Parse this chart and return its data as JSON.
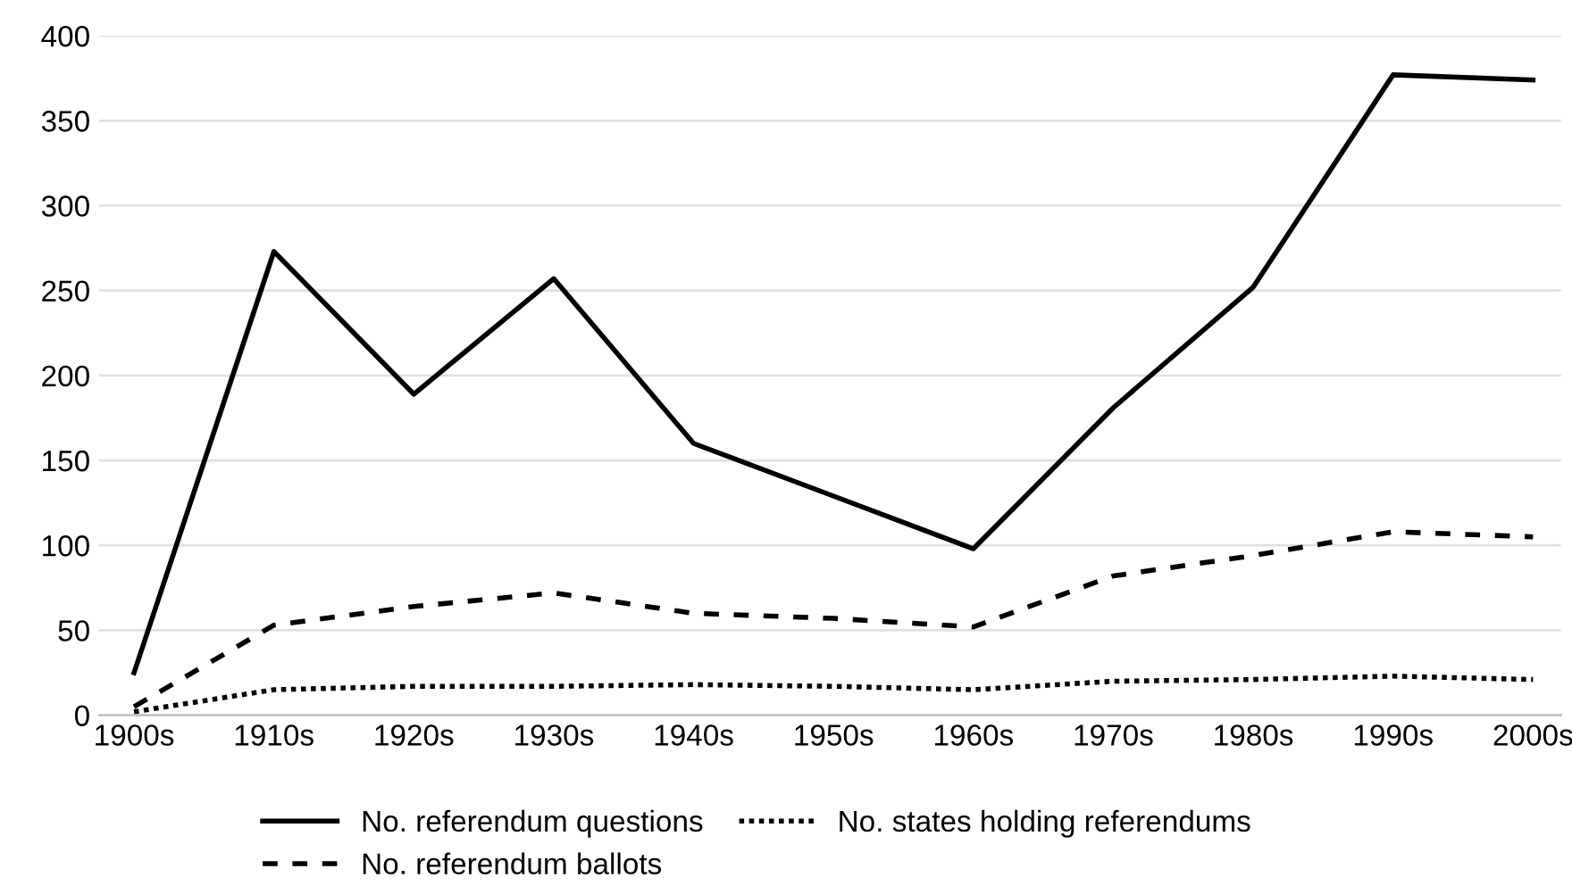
{
  "chart_data": {
    "type": "line",
    "categories": [
      "1900s",
      "1910s",
      "1920s",
      "1930s",
      "1940s",
      "1950s",
      "1960s",
      "1970s",
      "1980s",
      "1990s",
      "2000s"
    ],
    "series": [
      {
        "name": "No. referendum questions",
        "color": "#000000",
        "line_style": "solid",
        "values": [
          25,
          273,
          189,
          257,
          160,
          129,
          98,
          181,
          252,
          377,
          374
        ]
      },
      {
        "name": "No. referendum ballots",
        "color": "#000000",
        "line_style": "dashed",
        "values": [
          5,
          53,
          64,
          72,
          60,
          57,
          52,
          82,
          94,
          108,
          105
        ]
      },
      {
        "name": "No. states holding referendums",
        "color": "#000000",
        "line_style": "dotted",
        "values": [
          2,
          15,
          17,
          17,
          18,
          17,
          15,
          20,
          21,
          23,
          21
        ]
      }
    ],
    "ylim": [
      0,
      400
    ],
    "yticks": [
      0,
      50,
      100,
      150,
      200,
      250,
      300,
      350,
      400
    ],
    "grid": "y",
    "legend": "bottom",
    "marker": "none"
  }
}
